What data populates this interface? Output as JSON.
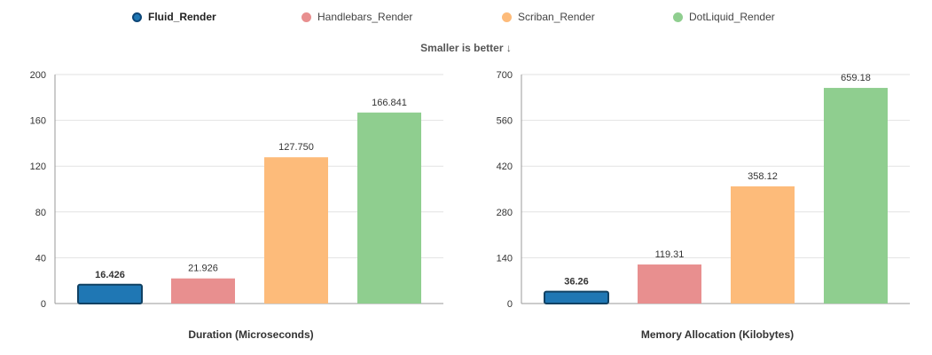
{
  "legend": [
    {
      "name": "Fluid_Render",
      "color": "#1f77b4",
      "active": true
    },
    {
      "name": "Handlebars_Render",
      "color": "#e88f8f",
      "active": false
    },
    {
      "name": "Scriban_Render",
      "color": "#fdbb7a",
      "active": false
    },
    {
      "name": "DotLiquid_Render",
      "color": "#8fce8f",
      "active": false
    }
  ],
  "subtitle": "Smaller is better ↓",
  "chart_data": [
    {
      "type": "bar",
      "title": "Duration (Microseconds)",
      "categories": [
        "Fluid_Render",
        "Handlebars_Render",
        "Scriban_Render",
        "DotLiquid_Render"
      ],
      "values": [
        16.426,
        21.926,
        127.75,
        166.841
      ],
      "value_labels": [
        "16.426",
        "21.926",
        "127.750",
        "166.841"
      ],
      "colors": [
        "#1f77b4",
        "#e88f8f",
        "#fdbb7a",
        "#8fce8f"
      ],
      "highlight_index": 0,
      "ylim": [
        0,
        200
      ],
      "yticks": [
        0,
        40,
        80,
        120,
        160,
        200
      ],
      "grid": true
    },
    {
      "type": "bar",
      "title": "Memory Allocation (Kilobytes)",
      "categories": [
        "Fluid_Render",
        "Handlebars_Render",
        "Scriban_Render",
        "DotLiquid_Render"
      ],
      "values": [
        36.26,
        119.31,
        358.12,
        659.18
      ],
      "value_labels": [
        "36.26",
        "119.31",
        "358.12",
        "659.18"
      ],
      "colors": [
        "#1f77b4",
        "#e88f8f",
        "#fdbb7a",
        "#8fce8f"
      ],
      "highlight_index": 0,
      "ylim": [
        0,
        700
      ],
      "yticks": [
        0,
        140,
        280,
        420,
        560,
        700
      ],
      "grid": true
    }
  ]
}
